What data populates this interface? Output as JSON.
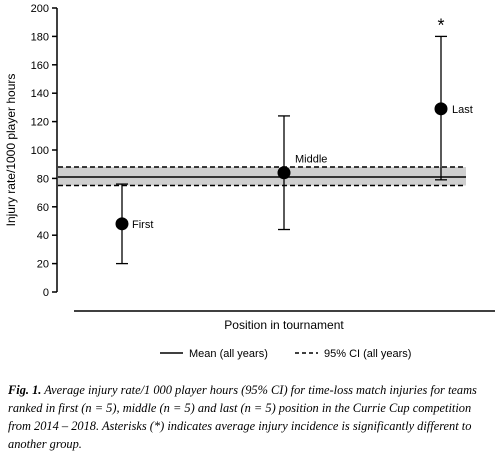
{
  "chart_data": {
    "type": "scatter",
    "ylabel": "Injury rate/1000 player hours",
    "xlabel": "Position in tournament",
    "ylim": [
      0,
      200
    ],
    "yticks": [
      0,
      20,
      40,
      60,
      80,
      100,
      120,
      140,
      160,
      180,
      200
    ],
    "grid": false,
    "points": [
      {
        "label": "First",
        "mean": 48,
        "ci_low": 20,
        "ci_high": 76,
        "significance": ""
      },
      {
        "label": "Middle",
        "mean": 84,
        "ci_low": 44,
        "ci_high": 124,
        "significance": ""
      },
      {
        "label": "Last",
        "mean": 129,
        "ci_low": 79,
        "ci_high": 180,
        "significance": "*"
      }
    ],
    "reference": {
      "mean_all_years": 81,
      "ci_all_years": [
        75,
        88
      ]
    },
    "legend": {
      "placement": "bottom",
      "items": [
        {
          "label": "Mean (all years)",
          "style": "solid"
        },
        {
          "label": "95% CI (all years)",
          "style": "dashed"
        }
      ]
    },
    "colors": {
      "band": "#cfcfcf",
      "marker": "#000000"
    }
  },
  "caption": {
    "label": "Fig. 1.",
    "text": "Average injury rate/1 000 player hours (95% CI) for time-loss match injuries for teams ranked in first (n = 5), middle (n = 5) and last (n = 5) position in the Currie Cup competition from 2014 – 2018. Asterisks (*) indicates average injury incidence is significantly different to another group."
  }
}
